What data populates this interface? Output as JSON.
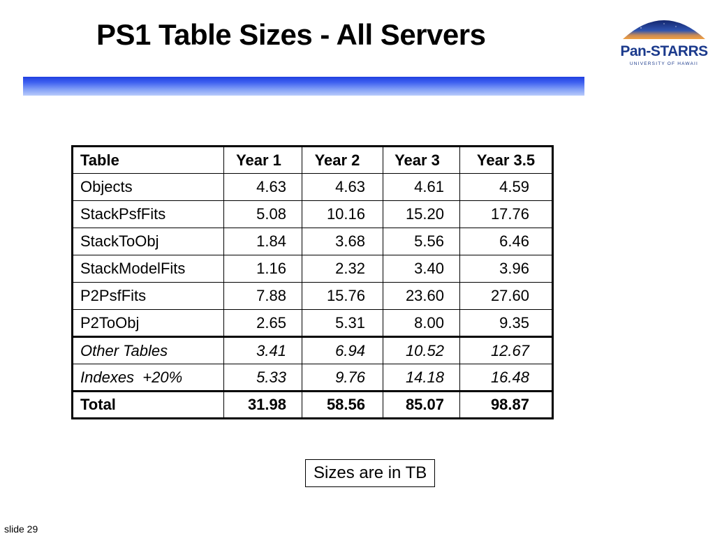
{
  "title": "PS1 Table Sizes - All Servers",
  "logo": {
    "text": "Pan-STARRS",
    "subtext": "UNIVERSITY OF HAWAII"
  },
  "table": {
    "headers": [
      "Table",
      "Year 1",
      "Year 2",
      "Year 3",
      "Year 3.5"
    ],
    "rows": [
      {
        "name": "Objects",
        "values": [
          "4.63",
          "4.63",
          "4.61",
          "4.59"
        ]
      },
      {
        "name": "StackPsfFits",
        "values": [
          "5.08",
          "10.16",
          "15.20",
          "17.76"
        ]
      },
      {
        "name": "StackToObj",
        "values": [
          "1.84",
          "3.68",
          "5.56",
          "6.46"
        ]
      },
      {
        "name": "StackModelFits",
        "values": [
          "1.16",
          "2.32",
          "3.40",
          "3.96"
        ]
      },
      {
        "name": "P2PsfFits",
        "values": [
          "7.88",
          "15.76",
          "23.60",
          "27.60"
        ]
      },
      {
        "name": "P2ToObj",
        "values": [
          "2.65",
          "5.31",
          "8.00",
          "9.35"
        ]
      },
      {
        "name": "Other Tables",
        "values": [
          "3.41",
          "6.94",
          "10.52",
          "12.67"
        ]
      },
      {
        "name": "Indexes  +20%",
        "values": [
          "5.33",
          "9.76",
          "14.18",
          "16.48"
        ]
      },
      {
        "name": "Total",
        "values": [
          "31.98",
          "58.56",
          "85.07",
          "98.87"
        ]
      }
    ]
  },
  "note": "Sizes are in TB",
  "slide_label": "slide 29",
  "colors": {
    "bar_top": "#1f3fe0",
    "bar_bottom": "#b9ccfb",
    "logo_text": "#1b3a8c",
    "logo_sky": "#1a2f86",
    "logo_horizon": "#f2a040"
  }
}
